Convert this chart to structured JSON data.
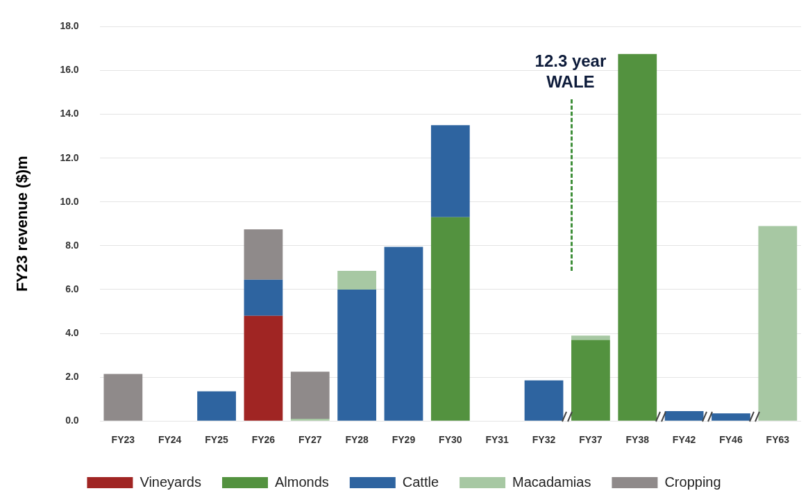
{
  "chart_data": {
    "type": "bar",
    "stacked": true,
    "ylabel": "FY23 revenue ($)m",
    "categories": [
      "FY23",
      "FY24",
      "FY25",
      "FY26",
      "FY27",
      "FY28",
      "FY29",
      "FY30",
      "FY31",
      "FY32",
      "FY37",
      "FY38",
      "FY42",
      "FY46",
      "FY63"
    ],
    "series": [
      {
        "name": "Vineyards",
        "color": "#a02523",
        "values": [
          null,
          null,
          null,
          4.8,
          null,
          null,
          null,
          null,
          null,
          null,
          null,
          null,
          null,
          null,
          null
        ]
      },
      {
        "name": "Almonds",
        "color": "#53923f",
        "values": [
          null,
          null,
          null,
          null,
          null,
          null,
          null,
          9.3,
          null,
          null,
          3.7,
          16.75,
          null,
          null,
          null
        ]
      },
      {
        "name": "Cattle",
        "color": "#2e64a0",
        "values": [
          null,
          null,
          1.35,
          1.65,
          null,
          6.0,
          7.95,
          4.2,
          null,
          1.85,
          null,
          null,
          0.45,
          0.35,
          null
        ]
      },
      {
        "name": "Macadamias",
        "color": "#a7c8a3",
        "values": [
          null,
          null,
          null,
          null,
          0.1,
          0.85,
          null,
          null,
          null,
          null,
          0.2,
          null,
          null,
          null,
          8.9
        ]
      },
      {
        "name": "Cropping",
        "color": "#8f8a8a",
        "values": [
          2.15,
          null,
          null,
          2.3,
          2.15,
          null,
          null,
          null,
          null,
          null,
          null,
          null,
          null,
          null,
          null
        ]
      }
    ],
    "ylim": [
      0,
      18
    ],
    "yticks": [
      {
        "value": 0,
        "label": "0.0"
      },
      {
        "value": 2,
        "label": "2.0"
      },
      {
        "value": 4,
        "label": "4.0"
      },
      {
        "value": 6,
        "label": "6.0"
      },
      {
        "value": 8,
        "label": "8.0"
      },
      {
        "value": 10,
        "label": "10.0"
      },
      {
        "value": 12,
        "label": "12.0"
      },
      {
        "value": 14,
        "label": "14.0"
      },
      {
        "value": 16,
        "label": "16.0"
      },
      {
        "value": 18,
        "label": "18.0"
      }
    ],
    "grid": "y",
    "legend": "bottom",
    "annotations": [
      "12.3 year WALE"
    ]
  }
}
